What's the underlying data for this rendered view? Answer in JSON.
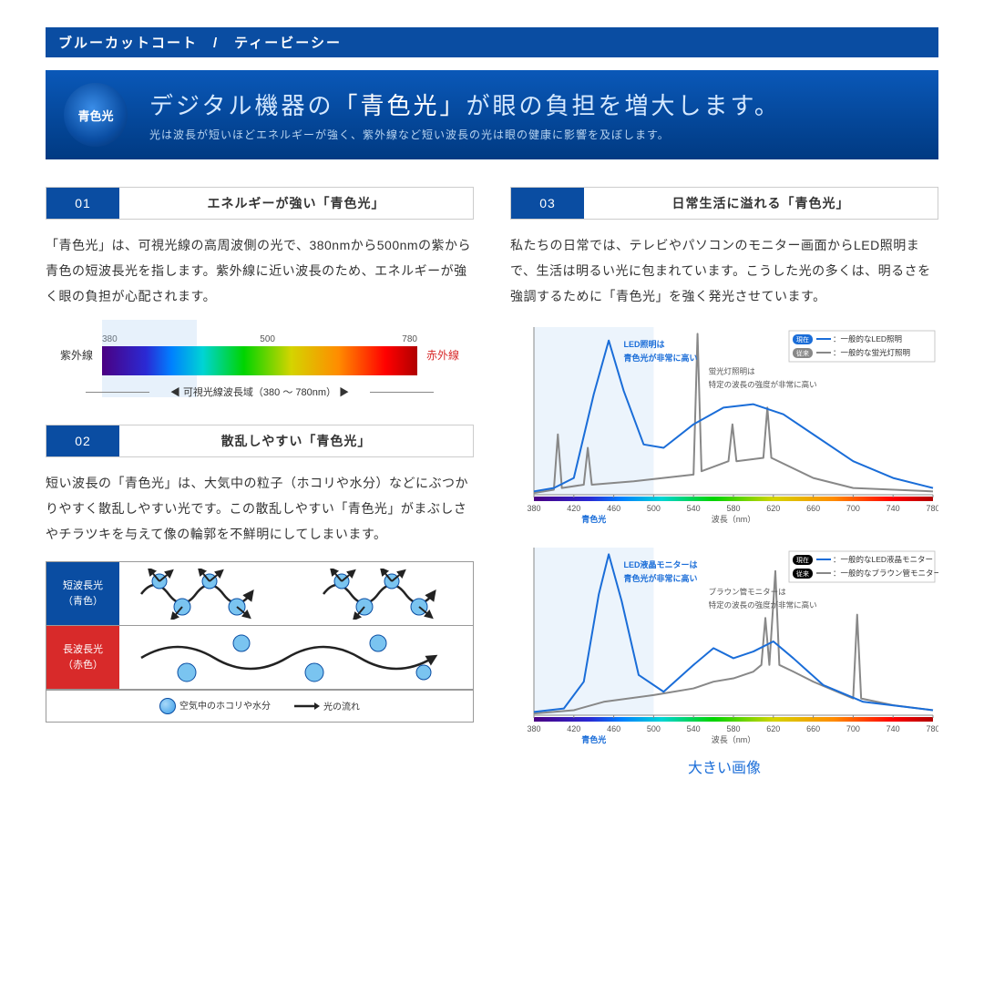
{
  "topbar": "ブルーカットコート　/　ティービーシー",
  "hero": {
    "circle": "青色光",
    "title_pre": "デジタル機器の",
    "title_hl": "「青色光」",
    "title_post": "が眼の負担を増大します。",
    "sub": "光は波長が短いほどエネルギーが強く、紫外線など短い波長の光は眼の健康に影響を及ぼします。"
  },
  "s1": {
    "num": "01",
    "title": "エネルギーが強い「青色光」",
    "body": "「青色光」は、可視光線の高周波側の光で、380nmから500nmの紫から青色の短波長光を指します。紫外線に近い波長のため、エネルギーが強く眼の負担が心配されます。"
  },
  "spectrum": {
    "tick_left": "380",
    "tick_mid": "500",
    "tick_right": "780",
    "left_label": "紫外線",
    "right_label": "赤外線",
    "caption": "可視光線波長域（380 〜 780nm）",
    "bar_gradient": "linear-gradient(90deg,#4b0082 0%,#2a2ad4 14%,#0080ff 22%,#00d4d4 32%,#00d400 45%,#d4d400 60%,#ff8c00 75%,#ff0000 90%,#b00000 100%)",
    "highlight_color": "rgba(160,200,240,0.25)"
  },
  "s2": {
    "num": "02",
    "title": "散乱しやすい「青色光」",
    "body": "短い波長の「青色光」は、大気中の粒子（ホコリや水分）などにぶつかりやすく散乱しやすい光です。この散乱しやすい「青色光」がまぶしさやチラツキを与えて像の輪郭を不鮮明にしてしまいます。"
  },
  "scatter": {
    "blue_l1": "短波長光",
    "blue_l2": "（青色）",
    "red_l1": "長波長光",
    "red_l2": "（赤色）",
    "legend_particle": "空気中のホコリや水分",
    "legend_arrow": "光の流れ",
    "blue_color": "#0a4da2",
    "red_color": "#d82a2a",
    "particle_fill": "#7ac4f0",
    "particle_stroke": "#0a4da2"
  },
  "s3": {
    "num": "03",
    "title": "日常生活に溢れる「青色光」",
    "body": "私たちの日常では、テレビやパソコンのモニター画面からLED照明まで、生活は明るい光に包まれています。こうした光の多くは、明るさを強調するために「青色光」を強く発光させています。"
  },
  "chart1": {
    "legend_now_badge": "現在",
    "legend_now": "：一般的なLED照明",
    "legend_old_badge": "従来",
    "legend_old": "：一般的な蛍光灯照明",
    "annot_led_l1": "LED照明は",
    "annot_led_l2": "青色光が非常に高い",
    "annot_fl_l1": "蛍光灯照明は",
    "annot_fl_l2": "特定の波長の強度が非常に高い",
    "xlabel": "波長（nm）",
    "blue_label": "青色光",
    "xticks": [
      "380",
      "420",
      "460",
      "500",
      "540",
      "580",
      "620",
      "660",
      "700",
      "740",
      "780"
    ],
    "highlight_range": [
      380,
      500
    ],
    "led_color": "#1a6dd8",
    "fl_color": "#888888",
    "now_badge_bg": "#1a6dd8",
    "old_badge_bg": "#888888",
    "led_curve": [
      [
        380,
        2
      ],
      [
        400,
        4
      ],
      [
        420,
        10
      ],
      [
        440,
        60
      ],
      [
        455,
        92
      ],
      [
        470,
        62
      ],
      [
        490,
        30
      ],
      [
        510,
        28
      ],
      [
        540,
        42
      ],
      [
        570,
        52
      ],
      [
        600,
        54
      ],
      [
        630,
        48
      ],
      [
        660,
        36
      ],
      [
        700,
        20
      ],
      [
        740,
        10
      ],
      [
        780,
        4
      ]
    ],
    "fl_curve": [
      [
        380,
        1
      ],
      [
        400,
        3
      ],
      [
        404,
        36
      ],
      [
        408,
        4
      ],
      [
        430,
        6
      ],
      [
        434,
        28
      ],
      [
        438,
        6
      ],
      [
        480,
        8
      ],
      [
        540,
        12
      ],
      [
        544,
        96
      ],
      [
        548,
        14
      ],
      [
        575,
        20
      ],
      [
        579,
        42
      ],
      [
        583,
        20
      ],
      [
        610,
        22
      ],
      [
        614,
        52
      ],
      [
        618,
        22
      ],
      [
        660,
        10
      ],
      [
        700,
        4
      ],
      [
        780,
        2
      ]
    ]
  },
  "chart2": {
    "legend_now_badge": "現在",
    "legend_now": "：一般的なLED液晶モニター",
    "legend_old_badge": "従来",
    "legend_old": "：一般的なブラウン管モニター",
    "annot_led_l1": "LED液晶モニターは",
    "annot_led_l2": "青色光が非常に高い",
    "annot_crt_l1": "ブラウン管モニターは",
    "annot_crt_l2": "特定の波長の強度が非常に高い",
    "xlabel": "波長（nm）",
    "blue_label": "青色光",
    "xticks": [
      "380",
      "420",
      "460",
      "500",
      "540",
      "580",
      "620",
      "660",
      "700",
      "740",
      "780"
    ],
    "highlight_range": [
      380,
      500
    ],
    "led_color": "#1a6dd8",
    "crt_color": "#888888",
    "led_curve": [
      [
        380,
        2
      ],
      [
        410,
        4
      ],
      [
        430,
        20
      ],
      [
        445,
        72
      ],
      [
        455,
        96
      ],
      [
        468,
        68
      ],
      [
        485,
        24
      ],
      [
        510,
        14
      ],
      [
        540,
        30
      ],
      [
        560,
        40
      ],
      [
        580,
        34
      ],
      [
        600,
        38
      ],
      [
        620,
        44
      ],
      [
        640,
        34
      ],
      [
        670,
        18
      ],
      [
        710,
        8
      ],
      [
        780,
        3
      ]
    ],
    "crt_curve": [
      [
        380,
        1
      ],
      [
        420,
        3
      ],
      [
        450,
        8
      ],
      [
        500,
        12
      ],
      [
        540,
        16
      ],
      [
        560,
        20
      ],
      [
        580,
        22
      ],
      [
        600,
        26
      ],
      [
        608,
        30
      ],
      [
        612,
        58
      ],
      [
        616,
        30
      ],
      [
        622,
        86
      ],
      [
        626,
        30
      ],
      [
        640,
        26
      ],
      [
        660,
        20
      ],
      [
        700,
        10
      ],
      [
        704,
        60
      ],
      [
        708,
        10
      ],
      [
        740,
        6
      ],
      [
        780,
        3
      ]
    ]
  },
  "big_link": "大きい画像"
}
